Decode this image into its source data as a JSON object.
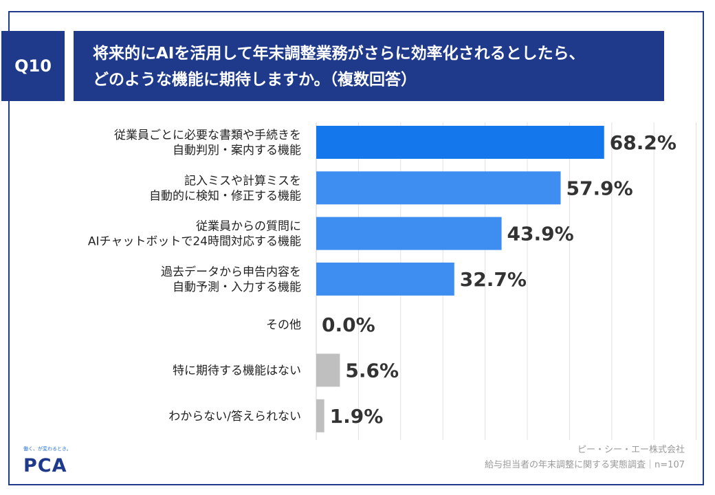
{
  "header": {
    "q_label": "Q10",
    "title_line1": "将来的にAIを活用して年末調整業務がさらに効率化されるとしたら、",
    "title_line2": "どのような機能に期待しますか。（複数回答）"
  },
  "footer": {
    "company": "ピー・シー・エー株式会社",
    "survey": "給与担当者の年末調整に関する実態調査｜n=107"
  },
  "logo": {
    "tagline": "働く、が変わるとき。",
    "brand": "PCA"
  },
  "colors": {
    "navy": "#1f3a8a",
    "bar_dark": "#1478ec",
    "bar_light": "#3d8ef0",
    "bar_gray": "#bfbfbf"
  },
  "chart_data": {
    "type": "bar",
    "orientation": "horizontal",
    "categories": [
      [
        "従業員ごとに必要な書類や手続きを",
        "自動判別・案内する機能"
      ],
      [
        "記入ミスや計算ミスを",
        "自動的に検知・修正する機能"
      ],
      [
        "従業員からの質問に",
        "AIチャットボットで24時間対応する機能"
      ],
      [
        "過去データから申告内容を",
        "自動予測・入力する機能"
      ],
      [
        "その他"
      ],
      [
        "特に期待する機能はない"
      ],
      [
        "わからない/答えられない"
      ]
    ],
    "values": [
      68.2,
      57.9,
      43.9,
      32.7,
      0.0,
      5.6,
      1.9
    ],
    "value_labels": [
      "68.2%",
      "57.9%",
      "43.9%",
      "32.7%",
      "0.0%",
      "5.6%",
      "1.9%"
    ],
    "bar_colors": [
      "#1478ec",
      "#3d8ef0",
      "#3d8ef0",
      "#3d8ef0",
      "#3d8ef0",
      "#bfbfbf",
      "#bfbfbf"
    ],
    "xlim": [
      0,
      100
    ],
    "grid": true
  }
}
